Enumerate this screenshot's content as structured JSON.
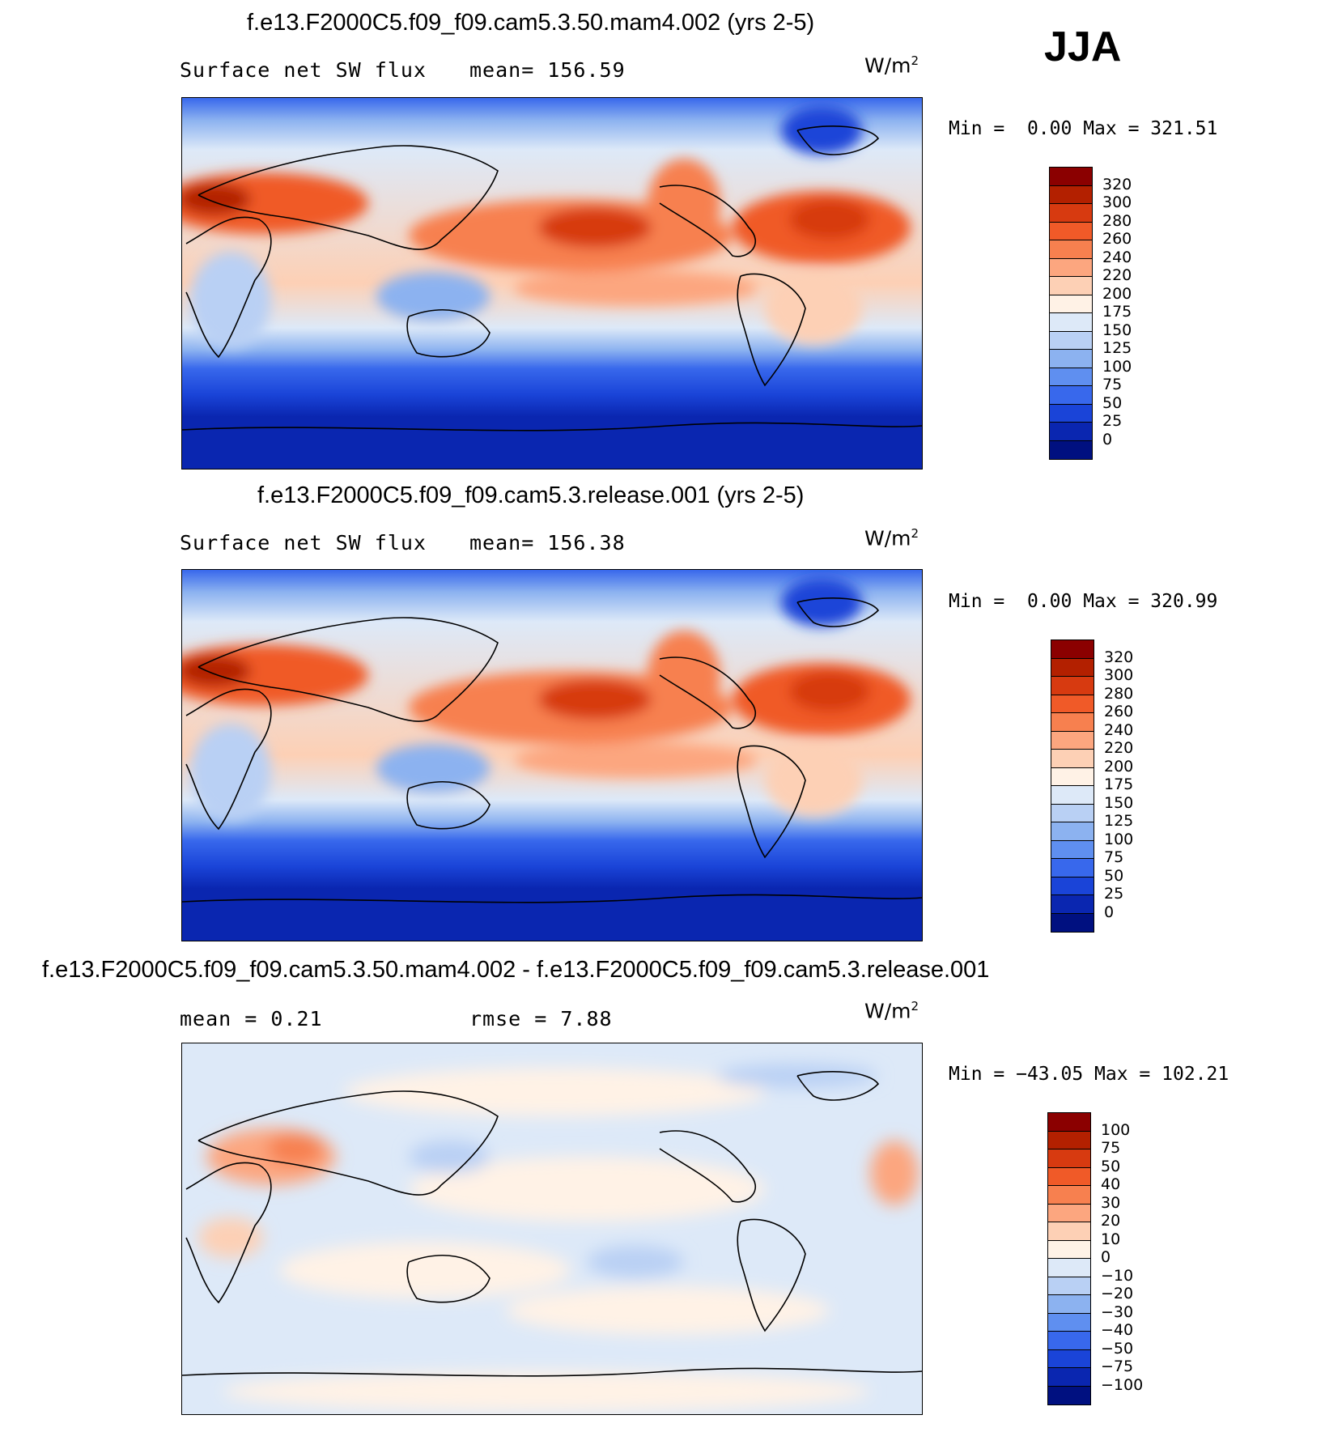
{
  "season": "JJA",
  "panels": [
    {
      "title": "f.e13.F2000C5.f09_f09.cam5.3.50.mam4.002 (yrs 2-5)",
      "left_label": "Surface net SW flux",
      "mean_label": "mean= 156.59",
      "units": "W/m",
      "units_exp": "2",
      "min_label": "Min = ",
      "min_value": "0.00",
      "max_label": "Max = ",
      "max_value": "321.51",
      "colorbar": {
        "labels": [
          "320",
          "300",
          "280",
          "260",
          "240",
          "220",
          "200",
          "175",
          "150",
          "125",
          "100",
          "75",
          "50",
          "25",
          "0"
        ],
        "colors": [
          "#8b0000",
          "#b32000",
          "#d73a10",
          "#f05a28",
          "#f7804f",
          "#fca67f",
          "#fdd0b5",
          "#fff2e6",
          "#dde9f8",
          "#b9d0f4",
          "#8cb2f0",
          "#5f8ff0",
          "#3868ec",
          "#1a44d8",
          "#0a26b0",
          "#001080"
        ]
      }
    },
    {
      "title": "f.e13.F2000C5.f09_f09.cam5.3.release.001 (yrs 2-5)",
      "left_label": "Surface net SW flux",
      "mean_label": "mean= 156.38",
      "units": "W/m",
      "units_exp": "2",
      "min_label": "Min = ",
      "min_value": "0.00",
      "max_label": "Max = ",
      "max_value": "320.99",
      "colorbar": {
        "labels": [
          "320",
          "300",
          "280",
          "260",
          "240",
          "220",
          "200",
          "175",
          "150",
          "125",
          "100",
          "75",
          "50",
          "25",
          "0"
        ],
        "colors": [
          "#8b0000",
          "#b32000",
          "#d73a10",
          "#f05a28",
          "#f7804f",
          "#fca67f",
          "#fdd0b5",
          "#fff2e6",
          "#dde9f8",
          "#b9d0f4",
          "#8cb2f0",
          "#5f8ff0",
          "#3868ec",
          "#1a44d8",
          "#0a26b0",
          "#001080"
        ]
      }
    },
    {
      "title": "f.e13.F2000C5.f09_f09.cam5.3.50.mam4.002 - f.e13.F2000C5.f09_f09.cam5.3.release.001",
      "left_label": "mean =    0.21",
      "mean_label": "rmse =    7.88",
      "units": "W/m",
      "units_exp": "2",
      "min_label": "Min = ",
      "min_value": "−43.05",
      "max_label": "Max = ",
      "max_value": "102.21",
      "colorbar": {
        "labels": [
          "100",
          "75",
          "50",
          "40",
          "30",
          "20",
          "10",
          "0",
          "−10",
          "−20",
          "−30",
          "−40",
          "−50",
          "−75",
          "−100"
        ],
        "colors": [
          "#8b0000",
          "#b32000",
          "#d73a10",
          "#f05a28",
          "#f7804f",
          "#fca67f",
          "#fdd0b5",
          "#fff2e6",
          "#dde9f8",
          "#b9d0f4",
          "#8cb2f0",
          "#5f8ff0",
          "#3868ec",
          "#1a44d8",
          "#0a26b0",
          "#001080"
        ]
      }
    }
  ]
}
